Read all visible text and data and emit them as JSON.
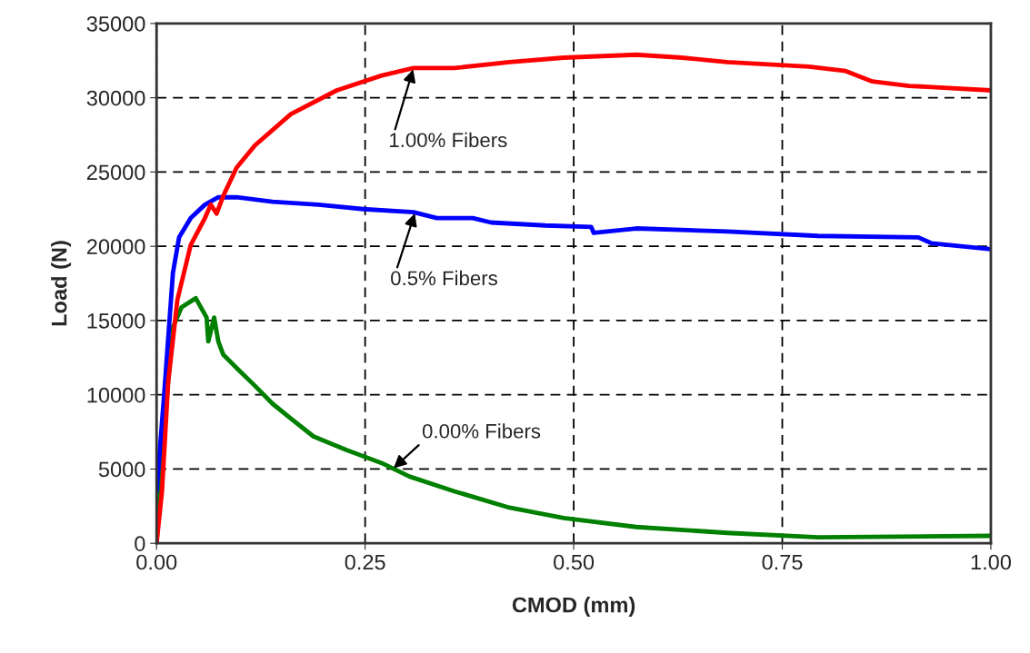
{
  "chart_data": {
    "type": "line",
    "xlabel": "CMOD (mm)",
    "ylabel": "Load (N)",
    "xlim": [
      0,
      1
    ],
    "xticks": [
      {
        "value": 0,
        "label": "0.00"
      },
      {
        "value": 0.25,
        "label": "0.25"
      },
      {
        "value": 0.5,
        "label": "0.50"
      },
      {
        "value": 0.75,
        "label": "0.75"
      },
      {
        "value": 1,
        "label": "1.00"
      }
    ],
    "ylim": [
      0,
      35000
    ],
    "yticks": [
      0,
      5000,
      10000,
      15000,
      20000,
      25000,
      30000,
      35000
    ],
    "grid": true,
    "legend": false,
    "line_style": "solid",
    "marker": "none",
    "series": [
      {
        "color": "#ff0000",
        "x": [
          0,
          0.0065,
          0.014,
          0.025,
          0.041,
          0.058,
          0.065,
          0.072,
          0.08,
          0.096,
          0.118,
          0.161,
          0.216,
          0.27,
          0.308,
          0.357,
          0.423,
          0.488,
          0.575,
          0.63,
          0.684,
          0.782,
          0.826,
          0.858,
          0.902,
          1.0
        ],
        "values": [
          0,
          3500,
          10900,
          16400,
          20100,
          21900,
          22800,
          22200,
          23400,
          25300,
          26800,
          28900,
          30500,
          31500,
          32000,
          32000,
          32400,
          32700,
          32900,
          32700,
          32400,
          32100,
          31800,
          31100,
          30800,
          30500
        ]
      },
      {
        "color": "#0000ff",
        "x": [
          0,
          0.0087,
          0.0196,
          0.027,
          0.041,
          0.058,
          0.074,
          0.096,
          0.139,
          0.194,
          0.248,
          0.308,
          0.336,
          0.379,
          0.401,
          0.466,
          0.521,
          0.524,
          0.575,
          0.684,
          0.793,
          0.913,
          0.929,
          1.0
        ],
        "values": [
          3500,
          9700,
          18200,
          20600,
          21900,
          22800,
          23300,
          23300,
          23000,
          22800,
          22500,
          22300,
          21900,
          21900,
          21600,
          21400,
          21300,
          20900,
          21200,
          21000,
          20700,
          20600,
          20200,
          19800
        ]
      },
      {
        "color": "#008000",
        "x": [
          0,
          0.0087,
          0.02,
          0.03,
          0.047,
          0.054,
          0.06,
          0.062,
          0.069,
          0.074,
          0.08,
          0.096,
          0.118,
          0.139,
          0.161,
          0.188,
          0.227,
          0.27,
          0.303,
          0.357,
          0.423,
          0.488,
          0.575,
          0.684,
          0.793,
          1.0
        ],
        "values": [
          0,
          7800,
          14600,
          15900,
          16500,
          15800,
          15200,
          13600,
          15200,
          13600,
          12700,
          11800,
          10600,
          9400,
          8400,
          7200,
          6300,
          5400,
          4500,
          3500,
          2400,
          1700,
          1100,
          700,
          400,
          500
        ]
      }
    ],
    "annotations": [
      {
        "text": "1.00% Fibers",
        "x": 0.308,
        "y": 32000
      },
      {
        "text": "0.5% Fibers",
        "x": 0.31,
        "y": 22300
      },
      {
        "text": "0.00% Fibers",
        "x": 0.283,
        "y": 5000
      }
    ]
  }
}
